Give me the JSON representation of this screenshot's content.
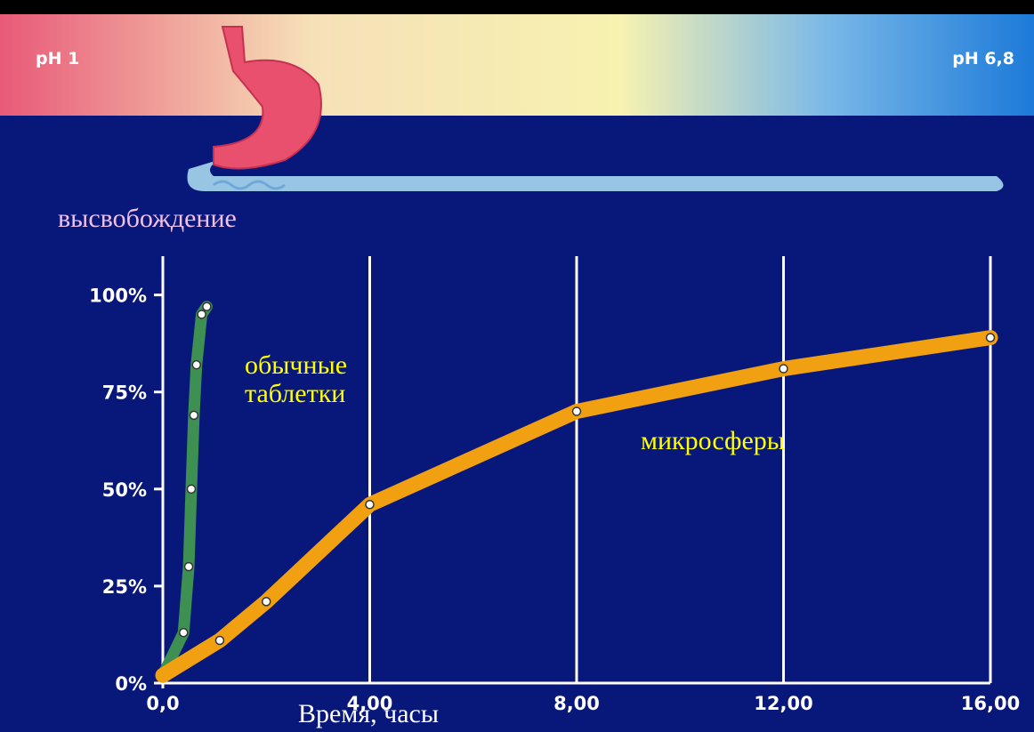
{
  "chart_data": {
    "type": "line",
    "ph_labels": [
      "pH 1",
      "pH 6,8"
    ],
    "y_label": "высвобождение",
    "x_label": "Время, часы",
    "xlim": [
      0,
      16
    ],
    "ylim": [
      0,
      110
    ],
    "xticks": [
      {
        "value": 0,
        "label": "0,0"
      },
      {
        "value": 4,
        "label": "4,00"
      },
      {
        "value": 8,
        "label": "8,00"
      },
      {
        "value": 12,
        "label": "12,00"
      },
      {
        "value": 16,
        "label": "16,00"
      }
    ],
    "yticks": [
      {
        "value": 0,
        "label": "0%"
      },
      {
        "value": 25,
        "label": "25%"
      },
      {
        "value": 50,
        "label": "50%"
      },
      {
        "value": 75,
        "label": "75%"
      },
      {
        "value": 100,
        "label": "100%"
      }
    ],
    "grid": true,
    "series": [
      {
        "name": "обычные таблетки",
        "color": "#3d8f52",
        "x": [
          0,
          0.4,
          0.5,
          0.55,
          0.6,
          0.65,
          0.75,
          0.85
        ],
        "values": [
          2,
          13,
          30,
          50,
          69,
          82,
          95,
          97
        ]
      },
      {
        "name": "микросферы",
        "color": "#f0a010",
        "x": [
          0,
          1.1,
          2,
          4,
          8,
          12,
          16
        ],
        "values": [
          2,
          11,
          21,
          46,
          70,
          81,
          89
        ]
      }
    ]
  }
}
